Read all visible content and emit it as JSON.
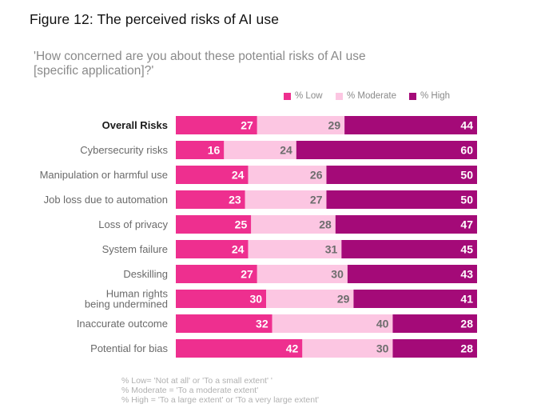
{
  "header": {
    "title": "Figure 12: The perceived risks of AI use",
    "subtitle_line1": "'How concerned are you about these potential risks of AI use",
    "subtitle_line2": "[specific application]?'"
  },
  "legend": [
    {
      "label": "% Low",
      "color": "#ee2f8f"
    },
    {
      "label": "% Moderate",
      "color": "#fcc6e2"
    },
    {
      "label": "% High",
      "color": "#a40a78"
    }
  ],
  "notes": [
    "% Low= 'Not at all' or 'To a small extent' '",
    "% Moderate = 'To a moderate extent'",
    "% High = 'To a large extent' or 'To a very large extent'"
  ],
  "chart_data": {
    "type": "bar",
    "orientation": "horizontal",
    "stacked": true,
    "normalized_percent": true,
    "categories": [
      [
        "Overall Risks"
      ],
      [
        "Cybersecurity risks"
      ],
      [
        "Manipulation or harmful use"
      ],
      [
        "Job loss due to automation"
      ],
      [
        "Loss of privacy"
      ],
      [
        "System failure"
      ],
      [
        "Deskilling"
      ],
      [
        "Human rights",
        "being undermined"
      ],
      [
        "Inaccurate outcome"
      ],
      [
        "Potential for bias"
      ]
    ],
    "bold_categories": [
      "Overall Risks"
    ],
    "series": [
      {
        "name": "% Low",
        "color": "#ee2f8f",
        "label_color": "#ffffff",
        "values": [
          27,
          16,
          24,
          23,
          25,
          24,
          27,
          30,
          32,
          42
        ]
      },
      {
        "name": "% Moderate",
        "color": "#fcc6e2",
        "label_color": "#6d6d6d",
        "values": [
          29,
          24,
          26,
          27,
          28,
          31,
          30,
          29,
          40,
          30
        ]
      },
      {
        "name": "% High",
        "color": "#a40a78",
        "label_color": "#ffffff",
        "values": [
          44,
          60,
          50,
          50,
          47,
          45,
          43,
          41,
          28,
          28
        ]
      }
    ],
    "xlim": [
      0,
      100
    ],
    "grid": false,
    "legend_position": "top-right"
  }
}
